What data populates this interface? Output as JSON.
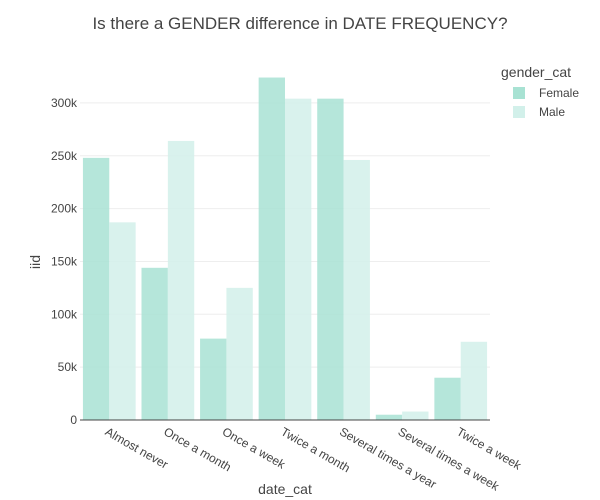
{
  "chart_data": {
    "type": "bar",
    "title": "Is there a GENDER difference in DATE FREQUENCY?",
    "xlabel": "date_cat",
    "ylabel": "iid",
    "categories": [
      "Almost never",
      "Once a month",
      "Once a week",
      "Twice a month",
      "Several times a year",
      "Several times a week",
      "Twice a week"
    ],
    "series": [
      {
        "name": "Female",
        "values": [
          248000,
          144000,
          77000,
          324000,
          304000,
          5000,
          40000
        ]
      },
      {
        "name": "Male",
        "values": [
          187000,
          264000,
          125000,
          304000,
          246000,
          8000,
          74000
        ]
      }
    ],
    "ylim": [
      0,
      345000
    ],
    "yticks": [
      0,
      50000,
      100000,
      150000,
      200000,
      250000,
      300000
    ],
    "ytick_labels": [
      "0",
      "50k",
      "100k",
      "150k",
      "200k",
      "250k",
      "300k"
    ],
    "grid": true,
    "legend": {
      "title": "gender_cat",
      "position": "top-right"
    },
    "colors": {
      "Female": "#a8e2d3",
      "Male": "#d2f0ea"
    }
  }
}
